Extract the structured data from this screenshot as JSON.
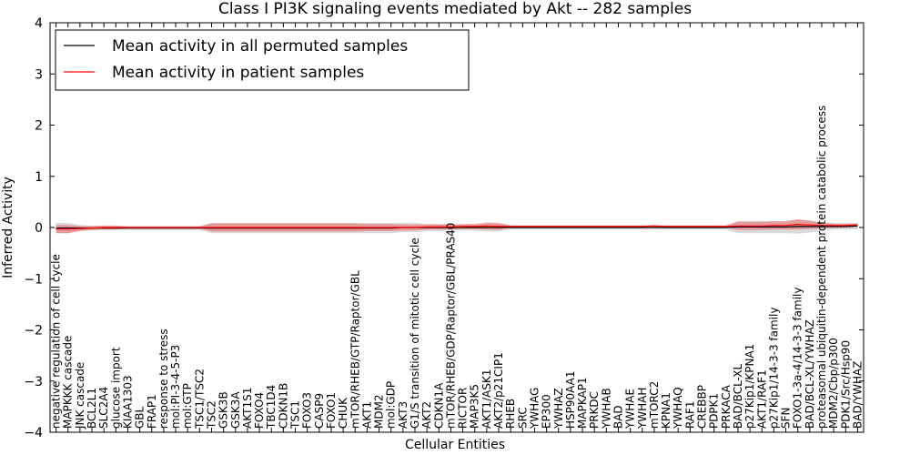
{
  "chart_data": {
    "type": "line",
    "title": "Class I PI3K signaling events mediated by Akt -- 282 samples",
    "xlabel": "Cellular Entities",
    "ylabel": "Inferred Activity",
    "ylim": [
      -4,
      4
    ],
    "yticks": [
      -4,
      -3,
      -2,
      -1,
      0,
      1,
      2,
      3,
      4
    ],
    "ytick_labels": [
      "−4",
      "−3",
      "−2",
      "−1",
      "0",
      "1",
      "2",
      "3",
      "4"
    ],
    "legend": {
      "placement": "top-left",
      "entries": [
        {
          "label": "Mean activity in all permuted samples",
          "color": "#000000"
        },
        {
          "label": "Mean activity in patient samples",
          "color": "#ff0000"
        }
      ]
    },
    "categories": [
      "negative regulation of cell cycle",
      "MAPKKK cascade",
      "JNK cascade",
      "BCL2L1",
      "SLC2A4",
      "glucose import",
      "KIAA1303",
      "GBL",
      "FRAP1",
      "response to stress",
      "mol:PI-3-4-5-P3",
      "mol:GTP",
      "TSC1/TSC2",
      "TSC2",
      "GSK3B",
      "GSK3A",
      "AKT1S1",
      "FOXO4",
      "TBC1D4",
      "CDKN1B",
      "TSC1",
      "FOXO3",
      "CASP9",
      "FOXO1",
      "CHUK",
      "mTOR/RHEB/GTP/Raptor/GBL",
      "AKT1",
      "MDM2",
      "mol:GDP",
      "AKT3",
      "G1/S transition of mitotic cell cycle",
      "AKT2",
      "CDKN1A",
      "mTOR/RHEB/GDP/Raptor/GBL/PRAS40",
      "RICTOR",
      "MAP3K5",
      "AKT1/ASK1",
      "AKT2/p21CIP1",
      "RHEB",
      "SRC",
      "YWHAG",
      "EP300",
      "YWHAZ",
      "HSP90AA1",
      "MAPKAP1",
      "PRKDC",
      "YWHAB",
      "BAD",
      "YWHAE",
      "YWHAH",
      "mTORC2",
      "KPNA1",
      "YWHAQ",
      "RAF1",
      "CREBBP",
      "PDPK1",
      "PRKACA",
      "BAD/BCL-XL",
      "p27Kip1/KPNA1",
      "AKT1/RAF1",
      "p27Kip1/14-3-3 family",
      "SFN",
      "FOXO1-3a-4/14-3-3 family",
      "BAD/BCL-XL/YWHAZ",
      "proteasomal ubiquitin-dependent protein catabolic process",
      "MDM2/Cbp/p300",
      "PDK1/Src/Hsp90",
      "BAD/YWHAZ"
    ],
    "series": [
      {
        "name": "Mean activity in all permuted samples",
        "color": "#000000",
        "values": [
          -0.01,
          -0.01,
          -0.01,
          -0.01,
          -0.01,
          -0.01,
          -0.01,
          -0.01,
          -0.01,
          -0.01,
          -0.01,
          -0.01,
          -0.01,
          -0.01,
          -0.01,
          -0.01,
          -0.01,
          -0.01,
          -0.01,
          -0.01,
          -0.01,
          -0.01,
          -0.01,
          -0.01,
          -0.01,
          -0.01,
          -0.01,
          -0.01,
          -0.01,
          0.0,
          0.0,
          0.0,
          0.0,
          0.0,
          0.0,
          0.0,
          0.0,
          0.0,
          0.0,
          0.0,
          0.0,
          0.0,
          0.0,
          0.0,
          0.0,
          0.0,
          0.0,
          0.0,
          0.0,
          0.0,
          0.0,
          0.0,
          0.0,
          0.0,
          0.0,
          0.0,
          0.0,
          0.01,
          0.01,
          0.01,
          0.01,
          0.01,
          0.02,
          0.02,
          0.02,
          0.02,
          0.02,
          0.03
        ],
        "band": [
          0.1,
          0.1,
          0.06,
          0.04,
          0.04,
          0.04,
          0.04,
          0.04,
          0.04,
          0.04,
          0.04,
          0.04,
          0.04,
          0.1,
          0.1,
          0.1,
          0.1,
          0.1,
          0.1,
          0.1,
          0.1,
          0.1,
          0.1,
          0.1,
          0.1,
          0.1,
          0.1,
          0.1,
          0.1,
          0.09,
          0.09,
          0.07,
          0.07,
          0.06,
          0.06,
          0.06,
          0.08,
          0.08,
          0.04,
          0.04,
          0.04,
          0.04,
          0.04,
          0.04,
          0.04,
          0.04,
          0.04,
          0.04,
          0.04,
          0.04,
          0.04,
          0.04,
          0.04,
          0.04,
          0.04,
          0.04,
          0.04,
          0.12,
          0.12,
          0.12,
          0.12,
          0.12,
          0.14,
          0.12,
          0.08,
          0.06,
          0.06,
          0.06
        ]
      },
      {
        "name": "Mean activity in patient samples",
        "color": "#ff0000",
        "values": [
          -0.03,
          -0.03,
          -0.02,
          -0.01,
          0.0,
          0.0,
          0.0,
          0.0,
          0.0,
          0.0,
          0.0,
          0.0,
          0.0,
          0.0,
          0.0,
          0.0,
          0.0,
          0.0,
          0.0,
          0.0,
          0.0,
          0.0,
          0.0,
          0.0,
          0.0,
          0.0,
          0.0,
          0.0,
          0.0,
          0.0,
          0.0,
          0.01,
          0.01,
          0.01,
          0.02,
          0.02,
          0.03,
          0.02,
          0.02,
          0.02,
          0.02,
          0.02,
          0.02,
          0.02,
          0.02,
          0.02,
          0.02,
          0.02,
          0.02,
          0.02,
          0.03,
          0.02,
          0.02,
          0.02,
          0.02,
          0.02,
          0.02,
          0.03,
          0.03,
          0.03,
          0.04,
          0.04,
          0.06,
          0.05,
          0.04,
          0.04,
          0.04,
          0.05
        ],
        "band": [
          0.08,
          0.08,
          0.05,
          0.04,
          0.04,
          0.04,
          0.02,
          0.02,
          0.02,
          0.02,
          0.02,
          0.02,
          0.02,
          0.08,
          0.08,
          0.08,
          0.08,
          0.08,
          0.08,
          0.08,
          0.08,
          0.08,
          0.08,
          0.08,
          0.08,
          0.08,
          0.07,
          0.07,
          0.07,
          0.06,
          0.06,
          0.05,
          0.05,
          0.05,
          0.05,
          0.05,
          0.07,
          0.07,
          0.02,
          0.02,
          0.02,
          0.02,
          0.02,
          0.02,
          0.02,
          0.02,
          0.02,
          0.02,
          0.02,
          0.02,
          0.02,
          0.02,
          0.02,
          0.02,
          0.02,
          0.02,
          0.02,
          0.08,
          0.08,
          0.08,
          0.08,
          0.08,
          0.1,
          0.08,
          0.06,
          0.04,
          0.04,
          0.03
        ]
      }
    ],
    "reference_line": {
      "y": 0,
      "style": "dotted",
      "color": "#888888"
    }
  }
}
